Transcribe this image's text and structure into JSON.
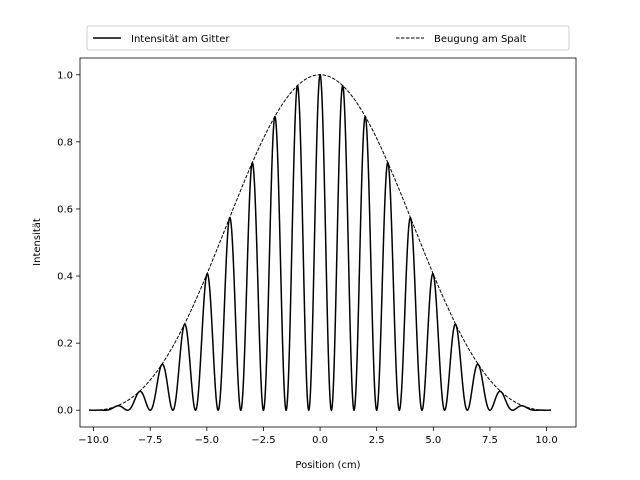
{
  "chart_data": {
    "type": "line",
    "title": "",
    "xlabel": "Position (cm)",
    "ylabel": "Intensität",
    "xlim": [
      -10.6,
      11.3
    ],
    "ylim": [
      -0.05,
      1.05
    ],
    "x_ticks": [
      -10.0,
      -7.5,
      -5.0,
      -2.5,
      0.0,
      2.5,
      5.0,
      7.5,
      10.0
    ],
    "x_tick_labels": [
      "−10.0",
      "−7.5",
      "−5.0",
      "−2.5",
      "0.0",
      "2.5",
      "5.0",
      "7.5",
      "10.0"
    ],
    "y_ticks": [
      0.0,
      0.2,
      0.4,
      0.6,
      0.8,
      1.0
    ],
    "y_tick_labels": [
      "0.0",
      "0.2",
      "0.4",
      "0.6",
      "0.8",
      "1.0"
    ],
    "grid": false,
    "legend_position": "top",
    "x_range": [
      -10.2,
      10.2
    ],
    "series": [
      {
        "name": "Intensität am Gitter",
        "style": "solid",
        "color": "#000000",
        "grating_period_cm": 1.0,
        "slit_zero_cm": 10.0,
        "peaks": [
          {
            "x": -9.0,
            "y": 0.012
          },
          {
            "x": -8.0,
            "y": 0.055
          },
          {
            "x": -7.0,
            "y": 0.14
          },
          {
            "x": -6.0,
            "y": 0.26
          },
          {
            "x": -5.0,
            "y": 0.41
          },
          {
            "x": -4.0,
            "y": 0.575
          },
          {
            "x": -3.0,
            "y": 0.74
          },
          {
            "x": -2.0,
            "y": 0.875
          },
          {
            "x": -1.0,
            "y": 0.968
          },
          {
            "x": 0.0,
            "y": 1.0
          },
          {
            "x": 1.0,
            "y": 0.968
          },
          {
            "x": 2.0,
            "y": 0.875
          },
          {
            "x": 3.0,
            "y": 0.74
          },
          {
            "x": 4.0,
            "y": 0.575
          },
          {
            "x": 5.0,
            "y": 0.41
          },
          {
            "x": 6.0,
            "y": 0.26
          },
          {
            "x": 7.0,
            "y": 0.14
          },
          {
            "x": 8.0,
            "y": 0.055
          },
          {
            "x": 9.0,
            "y": 0.012
          }
        ]
      },
      {
        "name": "Beugung am Spalt",
        "style": "dashed",
        "color": "#000000",
        "slit_zero_cm": 10.0
      }
    ]
  }
}
